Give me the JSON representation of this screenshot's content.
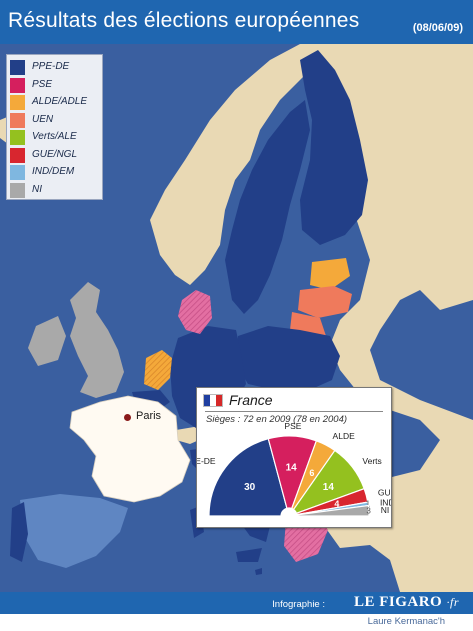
{
  "header": {
    "title": "Résultats des élections européennes",
    "date": "(08/06/09)"
  },
  "colors": {
    "sea": "#3a5fa0",
    "sea_shallow": "#4a72b0",
    "non_eu": "#e9d9b4",
    "PPE-DE": "#223f88",
    "PSE": "#d51f5e",
    "ALDE/ADLE": "#f4a93a",
    "UEN": "#ef7a5c",
    "Verts/ALE": "#94c11f",
    "GUE/NGL": "#d8262f",
    "IND/DEM": "#7fb7e0",
    "NI": "#a9a9a9",
    "mixed": "#5f86c2",
    "netherlands_hatch": "#f4a93a",
    "denmark_hatch": "#e36fa2"
  },
  "legend": {
    "items": [
      {
        "label": "PPE-DE",
        "color": "#223f88"
      },
      {
        "label": "PSE",
        "color": "#d51f5e"
      },
      {
        "label": "ALDE/ADLE",
        "color": "#f4a93a"
      },
      {
        "label": "UEN",
        "color": "#ef7a5c"
      },
      {
        "label": "Verts/ALE",
        "color": "#94c11f"
      },
      {
        "label": "GUE/NGL",
        "color": "#d8262f"
      },
      {
        "label": "IND/DEM",
        "color": "#7fb7e0"
      },
      {
        "label": "NI",
        "color": "#a9a9a9"
      }
    ]
  },
  "map": {
    "city_label": "Paris"
  },
  "inset": {
    "country": "France",
    "seats_text": "Sièges : 72 en 2009 (78 en 2004)",
    "flag_colors": [
      "#1f3fa0",
      "#ffffff",
      "#d62828"
    ],
    "chart_data": {
      "type": "pie",
      "subtype": "hemicycle",
      "title": "France",
      "series": [
        {
          "name": "PPE-DE",
          "value": 30,
          "color": "#223f88"
        },
        {
          "name": "PSE",
          "value": 14,
          "color": "#d51f5e"
        },
        {
          "name": "ALDE",
          "value": 6,
          "color": "#f4a93a"
        },
        {
          "name": "Verts",
          "value": 14,
          "color": "#94c11f"
        },
        {
          "name": "GUE",
          "value": 4,
          "color": "#d8262f"
        },
        {
          "name": "IND",
          "value": 1,
          "color": "#7fb7e0"
        },
        {
          "name": "NI",
          "value": 3,
          "color": "#a9a9a9"
        }
      ],
      "total": 72
    }
  },
  "footer": {
    "credit": "Infographie :",
    "logo_main": "LE FIGARO",
    "logo_suffix": "·fr",
    "author": "Laure Kermanac'h"
  }
}
